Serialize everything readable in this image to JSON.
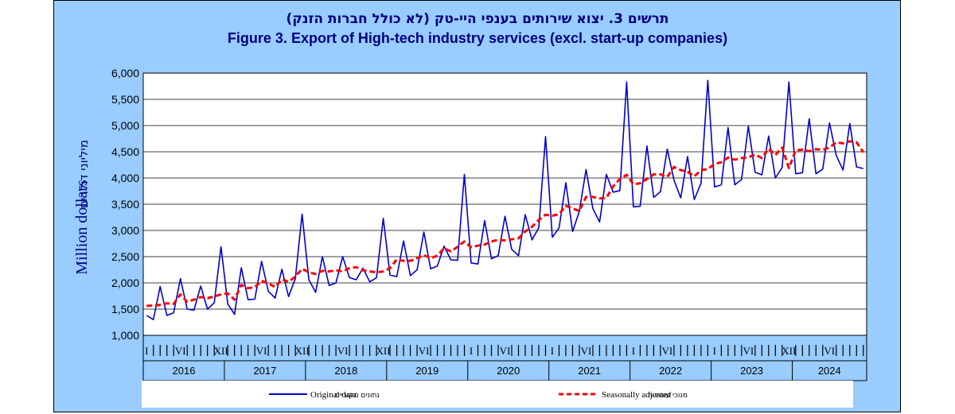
{
  "title_he": "תרשים 3. יצוא שירותים בענפי היי-טק (לא כולל חברות הזנק)",
  "title_en": "Figure 3. Export of High-tech industry services (excl. start-up companies)",
  "colors": {
    "frame": "#99ccff",
    "plot": "#ffffff",
    "original": "#0000cc",
    "seasonal": "#ff0000",
    "text": "#000080"
  },
  "chart_data": {
    "type": "line",
    "ylabel": "Million dollars",
    "ylabel_he": "מיליוני דולרים",
    "ylim": [
      1000,
      6000
    ],
    "yticks": [
      1000,
      1500,
      2000,
      2500,
      3000,
      3500,
      4000,
      4500,
      5000,
      5500,
      6000
    ],
    "ytick_labels": [
      "1,000",
      "1,500",
      "2,000",
      "2,500",
      "3,000",
      "3,500",
      "4,000",
      "4,500",
      "5,000",
      "5,500",
      "6,000"
    ],
    "grid": true,
    "legend_position": "bottom",
    "x_start": "2016-01",
    "x_end": "2024-11",
    "years": [
      "2016",
      "2017",
      "2018",
      "2019",
      "2020",
      "2021",
      "2022",
      "2023",
      "2024"
    ],
    "month_markers": [
      {
        "label": "I",
        "month": "2016-01"
      },
      {
        "label": "VI",
        "month": "2016-06"
      },
      {
        "label": "XII",
        "month": "2016-12"
      },
      {
        "label": "VI",
        "month": "2017-06"
      },
      {
        "label": "XII",
        "month": "2017-12"
      },
      {
        "label": "VI",
        "month": "2018-06"
      },
      {
        "label": "XII",
        "month": "2018-12"
      },
      {
        "label": "VI",
        "month": "2019-06"
      },
      {
        "label": "I",
        "month": "2020-01"
      },
      {
        "label": "VI",
        "month": "2020-06"
      },
      {
        "label": "I",
        "month": "2021-01"
      },
      {
        "label": "VI",
        "month": "2021-06"
      },
      {
        "label": "I",
        "month": "2022-01"
      },
      {
        "label": "VI",
        "month": "2022-06"
      },
      {
        "label": "I",
        "month": "2023-01"
      },
      {
        "label": "VI",
        "month": "2023-06"
      },
      {
        "label": "XII",
        "month": "2023-12"
      },
      {
        "label": "VI",
        "month": "2024-06"
      }
    ],
    "series": [
      {
        "name": "Original data",
        "name_he": "נתונים מקוריים",
        "values": [
          1380,
          1300,
          1930,
          1380,
          1430,
          2080,
          1500,
          1480,
          1940,
          1500,
          1620,
          2690,
          1600,
          1400,
          2290,
          1680,
          1690,
          2410,
          1840,
          1710,
          2260,
          1740,
          2080,
          3310,
          2060,
          1820,
          2500,
          1950,
          2000,
          2500,
          2100,
          2060,
          2280,
          2020,
          2100,
          3230,
          2150,
          2120,
          2800,
          2140,
          2250,
          2970,
          2270,
          2320,
          2700,
          2440,
          2430,
          4070,
          2380,
          2360,
          3190,
          2460,
          2520,
          3270,
          2640,
          2520,
          3300,
          2820,
          3050,
          4790,
          2870,
          3050,
          3910,
          2980,
          3360,
          4160,
          3420,
          3160,
          4070,
          3730,
          3760,
          5830,
          3450,
          3460,
          4610,
          3630,
          3740,
          4550,
          3960,
          3620,
          4410,
          3590,
          3900,
          5860,
          3830,
          3870,
          4960,
          3870,
          3970,
          4990,
          4110,
          4060,
          4800,
          4000,
          4200,
          5830,
          4080,
          4100,
          5130,
          4080,
          4170,
          5050,
          4430,
          4150,
          5040,
          4210,
          4180
        ]
      },
      {
        "name": "Seasonally adjusted",
        "name_he": "מנוכי עונתיות",
        "values": [
          1560,
          1570,
          1580,
          1610,
          1600,
          1780,
          1640,
          1680,
          1730,
          1710,
          1740,
          1780,
          1800,
          1680,
          1960,
          1900,
          1920,
          2040,
          1990,
          1920,
          2070,
          2020,
          2120,
          2270,
          2200,
          2170,
          2230,
          2220,
          2240,
          2220,
          2280,
          2300,
          2240,
          2220,
          2200,
          2220,
          2280,
          2450,
          2420,
          2420,
          2470,
          2530,
          2470,
          2520,
          2660,
          2600,
          2690,
          2790,
          2680,
          2710,
          2730,
          2790,
          2820,
          2810,
          2830,
          2850,
          2980,
          3070,
          3200,
          3300,
          3280,
          3310,
          3470,
          3420,
          3370,
          3640,
          3640,
          3610,
          3620,
          3840,
          3980,
          4060,
          3880,
          3900,
          3980,
          4070,
          4070,
          4020,
          4210,
          4150,
          4120,
          4030,
          4150,
          4170,
          4270,
          4300,
          4390,
          4350,
          4380,
          4390,
          4450,
          4380,
          4560,
          4440,
          4580,
          4190,
          4530,
          4540,
          4510,
          4550,
          4540,
          4580,
          4680,
          4660,
          4700,
          4680,
          4490
        ]
      }
    ]
  }
}
